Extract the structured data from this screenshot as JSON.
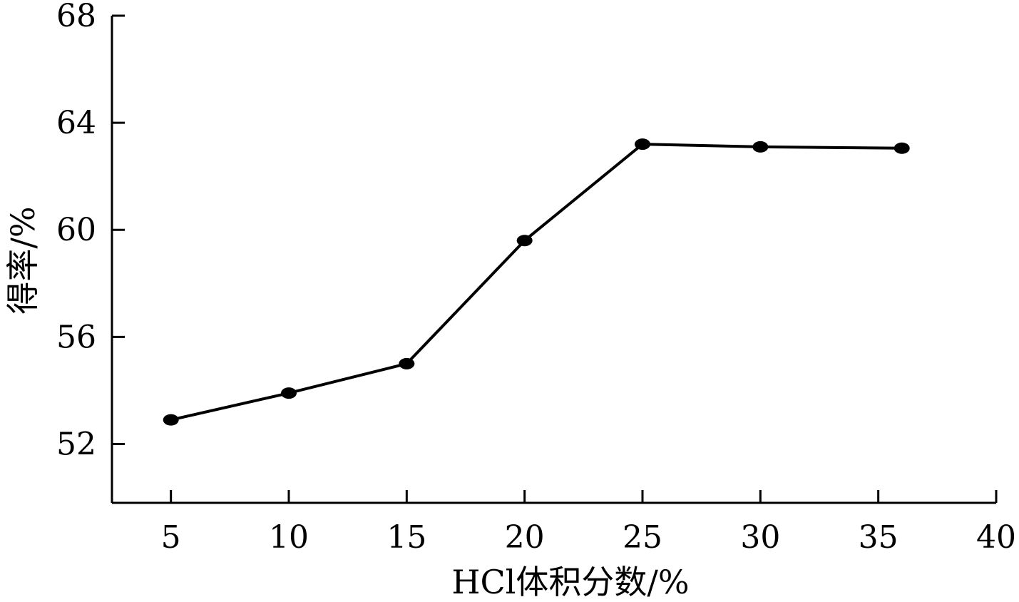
{
  "chart_data": {
    "type": "line",
    "title": "",
    "xlabel": "HCl体积分数/%",
    "ylabel": "得率/%",
    "x": [
      5,
      10,
      15,
      20,
      25,
      30,
      36
    ],
    "series": [
      {
        "values": [
          52.9,
          53.9,
          55.0,
          59.6,
          63.2,
          63.1,
          63.05
        ]
      }
    ],
    "x_ticks": [
      "5",
      "10",
      "15",
      "20",
      "25",
      "30",
      "35",
      "40"
    ],
    "y_ticks": [
      "52",
      "56",
      "60",
      "64",
      "68"
    ],
    "xlim": [
      2.5,
      40
    ],
    "ylim": [
      49.8,
      68
    ],
    "grid": false,
    "legend": "none",
    "colors": {
      "line": "#000000",
      "marker": "#000000",
      "axis": "#000000"
    }
  }
}
